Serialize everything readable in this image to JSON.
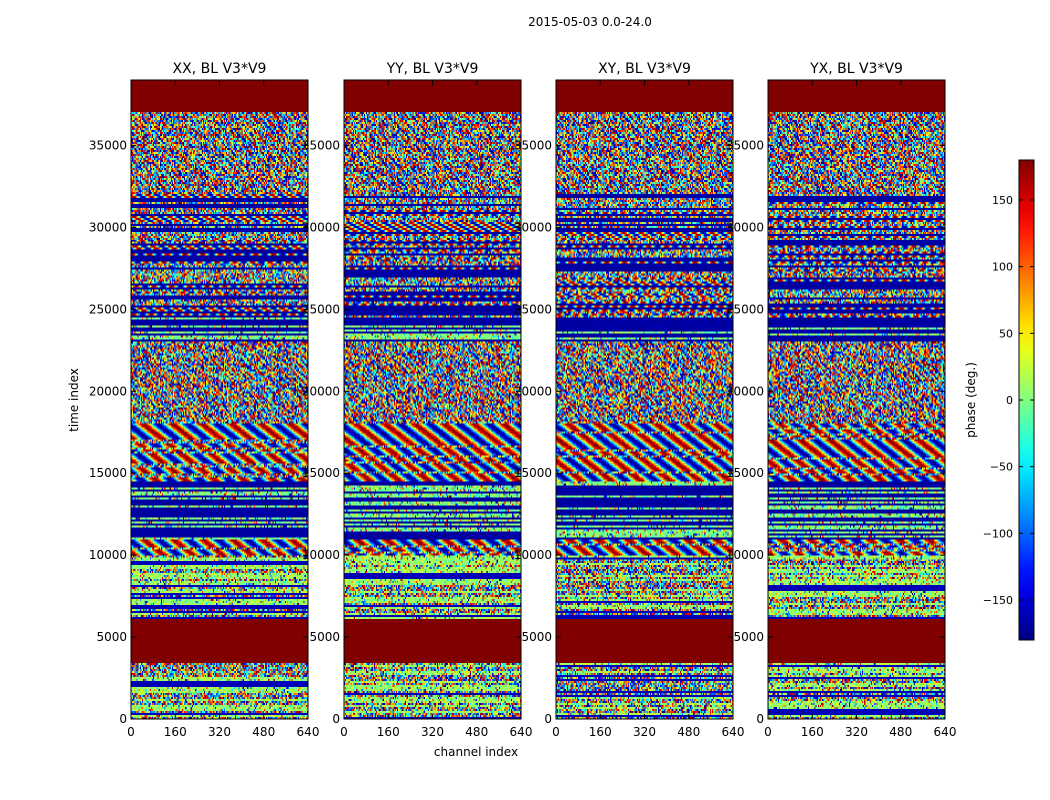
{
  "suptitle": "2015-05-03 0.0-24.0",
  "chart_data": {
    "type": "heatmap",
    "colormap": "jet",
    "xlabel": "channel index",
    "ylabel": "time index",
    "xlim": [
      0,
      640
    ],
    "ylim": [
      0,
      39000
    ],
    "xticks": [
      0,
      160,
      320,
      480,
      640
    ],
    "xtick_labels": [
      "0",
      "160",
      "320",
      "480",
      "640"
    ],
    "yticks": [
      0,
      5000,
      10000,
      15000,
      20000,
      25000,
      30000,
      35000
    ],
    "ytick_labels": [
      "0",
      "5000",
      "10000",
      "15000",
      "20000",
      "25000",
      "30000",
      "35000"
    ],
    "panels": [
      {
        "title": "XX, BL V3*V9"
      },
      {
        "title": "YY, BL V3*V9"
      },
      {
        "title": "XY, BL V3*V9"
      },
      {
        "title": "YX, BL V3*V9"
      }
    ],
    "colorbar": {
      "label": "phase (deg.)",
      "range": [
        -180,
        180
      ],
      "ticks": [
        -150,
        -100,
        -50,
        0,
        50,
        100,
        150
      ],
      "tick_labels": [
        "−150",
        "−100",
        "−50",
        "0",
        "50",
        "100",
        "150"
      ]
    },
    "bands": [
      {
        "from": 0,
        "to": 3400,
        "pattern": "noisy-stripes"
      },
      {
        "from": 3400,
        "to": 6100,
        "pattern": "flagged",
        "value": 180
      },
      {
        "from": 6100,
        "to": 10000,
        "pattern": "noisy-stripes"
      },
      {
        "from": 10000,
        "to": 11000,
        "pattern": "fringes"
      },
      {
        "from": 11000,
        "to": 14500,
        "pattern": "low-stripes"
      },
      {
        "from": 14500,
        "to": 18000,
        "pattern": "fringes"
      },
      {
        "from": 18000,
        "to": 23000,
        "pattern": "noise"
      },
      {
        "from": 23000,
        "to": 24500,
        "pattern": "low-stripes"
      },
      {
        "from": 24500,
        "to": 32000,
        "pattern": "fringe-stripes"
      },
      {
        "from": 32000,
        "to": 37000,
        "pattern": "noise"
      },
      {
        "from": 37000,
        "to": 39000,
        "pattern": "flagged",
        "value": 180
      }
    ]
  }
}
